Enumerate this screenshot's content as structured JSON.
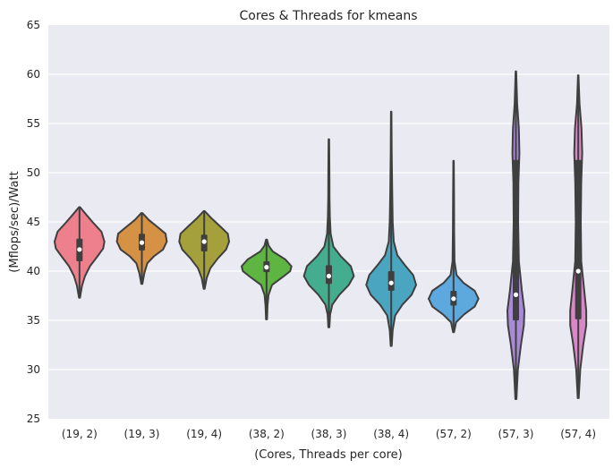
{
  "chart_data": {
    "type": "violin",
    "title": "Cores & Threads for kmeans",
    "xlabel": "(Cores, Threads per core)",
    "ylabel": "(Mflops/sec)/Watt",
    "ylim": [
      25,
      65
    ],
    "yticks": [
      25,
      30,
      35,
      40,
      45,
      50,
      55,
      60,
      65
    ],
    "grid": true,
    "legend": "none",
    "categories": [
      "(19, 2)",
      "(19, 3)",
      "(19, 4)",
      "(38, 2)",
      "(38, 3)",
      "(38, 4)",
      "(57, 2)",
      "(57, 3)",
      "(57, 4)"
    ],
    "series": [
      {
        "category": "(19, 2)",
        "color": "#ee7f8d",
        "min": 37.3,
        "max": 46.5,
        "q1": 41.0,
        "median": 42.2,
        "q3": 43.3,
        "profile": [
          [
            37.3,
            0.02
          ],
          [
            38.5,
            0.1
          ],
          [
            39.5,
            0.22
          ],
          [
            40.5,
            0.42
          ],
          [
            41.5,
            0.72
          ],
          [
            42.3,
            0.95
          ],
          [
            43.0,
            1.0
          ],
          [
            44.0,
            0.88
          ],
          [
            45.0,
            0.52
          ],
          [
            45.8,
            0.25
          ],
          [
            46.5,
            0.02
          ]
        ]
      },
      {
        "category": "(19, 3)",
        "color": "#d59244",
        "min": 38.7,
        "max": 45.9,
        "q1": 42.1,
        "median": 42.9,
        "q3": 43.8,
        "profile": [
          [
            38.7,
            0.02
          ],
          [
            39.8,
            0.1
          ],
          [
            40.8,
            0.22
          ],
          [
            41.5,
            0.48
          ],
          [
            42.2,
            0.85
          ],
          [
            43.0,
            1.0
          ],
          [
            43.8,
            0.95
          ],
          [
            44.5,
            0.62
          ],
          [
            45.2,
            0.28
          ],
          [
            45.9,
            0.02
          ]
        ]
      },
      {
        "category": "(19, 4)",
        "color": "#a4a03c",
        "min": 38.2,
        "max": 46.1,
        "q1": 42.0,
        "median": 43.0,
        "q3": 43.7,
        "profile": [
          [
            38.2,
            0.02
          ],
          [
            39.3,
            0.1
          ],
          [
            40.3,
            0.25
          ],
          [
            41.3,
            0.55
          ],
          [
            42.2,
            0.88
          ],
          [
            43.0,
            1.0
          ],
          [
            43.8,
            0.95
          ],
          [
            44.6,
            0.62
          ],
          [
            45.4,
            0.28
          ],
          [
            46.1,
            0.02
          ]
        ]
      },
      {
        "category": "(38, 2)",
        "color": "#5fb542",
        "min": 35.1,
        "max": 43.2,
        "q1": 39.9,
        "median": 40.4,
        "q3": 41.0,
        "profile": [
          [
            35.1,
            0.02
          ],
          [
            36.5,
            0.04
          ],
          [
            37.6,
            0.08
          ],
          [
            38.6,
            0.22
          ],
          [
            39.4,
            0.65
          ],
          [
            40.0,
            0.95
          ],
          [
            40.5,
            1.0
          ],
          [
            41.2,
            0.75
          ],
          [
            42.0,
            0.25
          ],
          [
            42.6,
            0.08
          ],
          [
            43.2,
            0.02
          ]
        ]
      },
      {
        "category": "(38, 3)",
        "color": "#44ad8f",
        "min": 34.3,
        "max": 53.4,
        "q1": 38.7,
        "median": 39.5,
        "q3": 40.6,
        "profile": [
          [
            34.3,
            0.02
          ],
          [
            35.6,
            0.05
          ],
          [
            36.6,
            0.14
          ],
          [
            37.6,
            0.42
          ],
          [
            38.6,
            0.8
          ],
          [
            39.5,
            1.0
          ],
          [
            40.5,
            0.88
          ],
          [
            41.5,
            0.48
          ],
          [
            42.5,
            0.18
          ],
          [
            43.8,
            0.07
          ],
          [
            45.5,
            0.04
          ],
          [
            47.5,
            0.025
          ],
          [
            50.0,
            0.02
          ],
          [
            53.4,
            0.01
          ]
        ]
      },
      {
        "category": "(38, 4)",
        "color": "#4aa6c0",
        "min": 32.4,
        "max": 56.2,
        "q1": 38.0,
        "median": 38.8,
        "q3": 40.0,
        "profile": [
          [
            32.4,
            0.02
          ],
          [
            34.0,
            0.06
          ],
          [
            35.5,
            0.16
          ],
          [
            36.6,
            0.45
          ],
          [
            37.6,
            0.82
          ],
          [
            38.6,
            1.0
          ],
          [
            39.6,
            0.88
          ],
          [
            40.6,
            0.55
          ],
          [
            41.6,
            0.25
          ],
          [
            43.0,
            0.1
          ],
          [
            45.0,
            0.06
          ],
          [
            48.0,
            0.04
          ],
          [
            52.0,
            0.02
          ],
          [
            56.2,
            0.01
          ]
        ]
      },
      {
        "category": "(57, 2)",
        "color": "#5da8df",
        "min": 33.8,
        "max": 51.2,
        "q1": 36.5,
        "median": 37.2,
        "q3": 38.0,
        "profile": [
          [
            33.8,
            0.02
          ],
          [
            34.8,
            0.1
          ],
          [
            35.6,
            0.42
          ],
          [
            36.4,
            0.85
          ],
          [
            37.2,
            1.0
          ],
          [
            38.0,
            0.85
          ],
          [
            38.8,
            0.4
          ],
          [
            39.6,
            0.12
          ],
          [
            41.0,
            0.04
          ],
          [
            44.0,
            0.025
          ],
          [
            47.5,
            0.02
          ],
          [
            51.2,
            0.01
          ]
        ]
      },
      {
        "category": "(57, 3)",
        "color": "#a98bd5",
        "min": 27.0,
        "max": 60.3,
        "q1": 35.0,
        "median": 37.6,
        "q3": 51.3,
        "profile": [
          [
            27.0,
            0.02
          ],
          [
            30.0,
            0.08
          ],
          [
            32.5,
            0.2
          ],
          [
            34.5,
            0.32
          ],
          [
            36.0,
            0.34
          ],
          [
            38.0,
            0.24
          ],
          [
            41.0,
            0.12
          ],
          [
            45.0,
            0.09
          ],
          [
            49.0,
            0.1
          ],
          [
            52.0,
            0.14
          ],
          [
            54.5,
            0.12
          ],
          [
            57.0,
            0.05
          ],
          [
            60.3,
            0.01
          ]
        ]
      },
      {
        "category": "(57, 4)",
        "color": "#d987c6",
        "min": 27.1,
        "max": 59.9,
        "q1": 35.1,
        "median": 40.0,
        "q3": 51.3,
        "profile": [
          [
            27.1,
            0.02
          ],
          [
            30.0,
            0.08
          ],
          [
            32.5,
            0.2
          ],
          [
            34.5,
            0.32
          ],
          [
            36.0,
            0.32
          ],
          [
            38.0,
            0.24
          ],
          [
            41.0,
            0.12
          ],
          [
            45.0,
            0.1
          ],
          [
            49.0,
            0.12
          ],
          [
            52.0,
            0.16
          ],
          [
            54.5,
            0.13
          ],
          [
            57.0,
            0.05
          ],
          [
            59.9,
            0.01
          ]
        ]
      }
    ]
  }
}
